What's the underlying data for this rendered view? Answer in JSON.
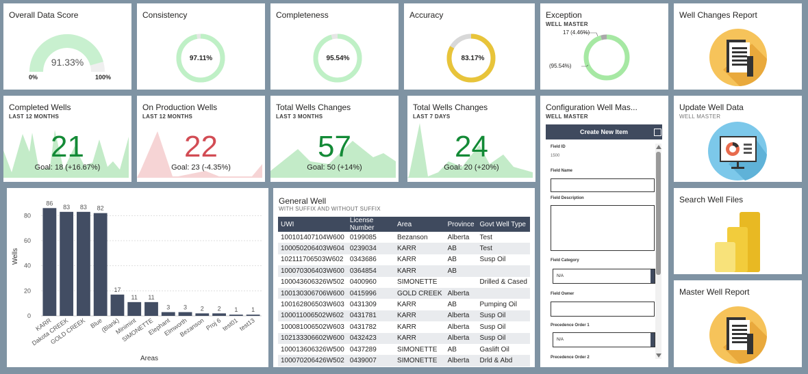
{
  "cards": {
    "overall": {
      "title": "Overall Data Score",
      "value": "91.33%",
      "min_label": "0%",
      "max_label": "100%",
      "percent": 91.33,
      "color": "#c8f0cf"
    },
    "consistency": {
      "title": "Consistency",
      "value": "97.11%",
      "percent": 97.11,
      "color": "#bff0c6"
    },
    "completeness": {
      "title": "Completeness",
      "value": "95.54%",
      "percent": 95.54,
      "color": "#bff0c6"
    },
    "accuracy": {
      "title": "Accuracy",
      "value": "83.17%",
      "percent": 83.17,
      "color": "#e8c43a"
    },
    "exception": {
      "title": "Exception",
      "subtitle": "WELL MASTER",
      "label_small": "17 (4.46%)",
      "label_large": "(95.54%)",
      "percent": 95.54,
      "color": "#a6e8a3",
      "minor_color": "#a9a9a9"
    },
    "well_changes_report": {
      "title": "Well Changes Report",
      "icon": "report-document-icon"
    },
    "completed_wells": {
      "title": "Completed Wells",
      "subtitle": "LAST 12 MONTHS",
      "value": "21",
      "goal": "Goal: 18 (+16.67%)",
      "value_color": "#138a36",
      "trend_color": "#c3ebc8"
    },
    "on_production": {
      "title": "On Production Wells",
      "subtitle": "LAST 12 MONTHS",
      "value": "22",
      "goal": "Goal: 23 (-4.35%)",
      "value_color": "#d24c54",
      "trend_color": "#f6d4d5"
    },
    "total_changes_3m": {
      "title": "Total Wells Changes",
      "subtitle": "LAST 3 MONTHS",
      "value": "57",
      "goal": "Goal: 50 (+14%)",
      "value_color": "#138a36",
      "trend_color": "#c3ebc8"
    },
    "total_changes_7d": {
      "title": "Total Wells Changes",
      "subtitle": "LAST 7 DAYS",
      "value": "24",
      "goal": "Goal: 20 (+20%)",
      "value_color": "#138a36",
      "trend_color": "#c3ebc8"
    },
    "config": {
      "title": "Configuration Well Mas...",
      "subtitle": "WELL MASTER",
      "header": "Create New Item",
      "field_id_label": "Field ID",
      "field_id_value": "1500",
      "field_name_label": "Field Name",
      "field_desc_label": "Field Description",
      "field_category_label": "Field Category",
      "field_category_value": "N/A",
      "field_owner_label": "Field Owner",
      "precedence1_label": "Precedence Order 1",
      "precedence1_value": "N/A",
      "precedence2_label": "Precedence Order 2"
    },
    "update_well": {
      "title": "Update Well Data",
      "subtitle": "WELL MASTER",
      "icon": "monitor-chart-icon"
    },
    "search_files": {
      "title": "Search Well Files",
      "icon": "power-bi-icon"
    },
    "master_report": {
      "title": "Master Well Report",
      "icon": "report-document-icon"
    }
  },
  "chart_data": {
    "type": "bar",
    "xlabel": "Areas",
    "ylabel": "Wells",
    "ylim": [
      0,
      90
    ],
    "yticks": [
      0,
      20,
      40,
      60,
      80
    ],
    "categories": [
      "KARR",
      "Dakota CREEK",
      "GOLD CREEK",
      "Blue",
      "(Blank)",
      "Minimint",
      "SIMONETTE",
      "Elephant",
      "Elmworth",
      "Bezanson",
      "Proj 6",
      "test01",
      "test13"
    ],
    "values": [
      86,
      83,
      83,
      82,
      17,
      11,
      11,
      3,
      3,
      2,
      2,
      1,
      1
    ],
    "bar_color": "#424d63",
    "grid": true
  },
  "table": {
    "title": "General Well",
    "subtitle": "WITH SUFFIX AND WITHOUT SUFFIX",
    "columns": [
      "UWI",
      "License Number",
      "Area",
      "Province",
      "Govt Well Type"
    ],
    "rows": [
      [
        "100101407104W600",
        "0199085",
        "Bezanson",
        "Alberta",
        "Test"
      ],
      [
        "100050206403W604",
        "0239034",
        "KARR",
        "AB",
        "Test"
      ],
      [
        "102111706503W602",
        "0343686",
        "KARR",
        "AB",
        "Susp Oil"
      ],
      [
        "100070306403W600",
        "0364854",
        "KARR",
        "AB",
        ""
      ],
      [
        "100043606326W502",
        "0400960",
        "SIMONETTE",
        "",
        "Drilled & Cased"
      ],
      [
        "100130306706W600",
        "0415996",
        "GOLD CREEK",
        "Alberta",
        ""
      ],
      [
        "100162806503W603",
        "0431309",
        "KARR",
        "AB",
        "Pumping Oil"
      ],
      [
        "100011006502W602",
        "0431781",
        "KARR",
        "Alberta",
        "Susp Oil"
      ],
      [
        "100081006502W603",
        "0431782",
        "KARR",
        "Alberta",
        "Susp Oil"
      ],
      [
        "102133306602W600",
        "0432423",
        "KARR",
        "Alberta",
        "Susp Oil"
      ],
      [
        "100013606326W500",
        "0437289",
        "SIMONETTE",
        "AB",
        "Gaslift Oil"
      ],
      [
        "100070206426W502",
        "0439007",
        "SIMONETTE",
        "Alberta",
        "Drld & Abd"
      ]
    ]
  }
}
